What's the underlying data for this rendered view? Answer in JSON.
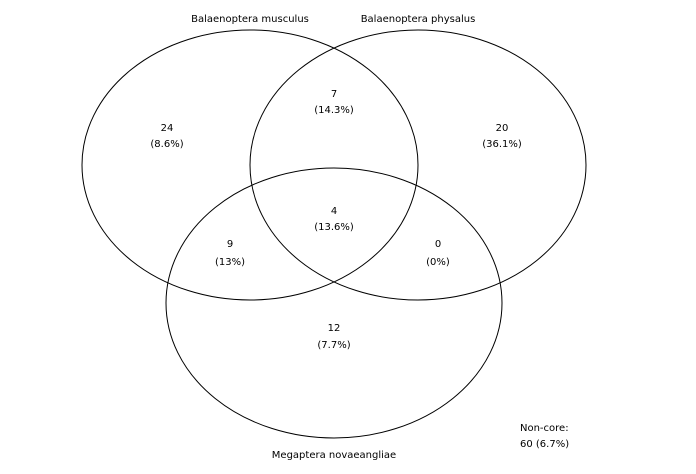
{
  "sets": {
    "a": "Balaenoptera musculus",
    "b": "Balaenoptera physalus",
    "c": "Megaptera novaeangliae"
  },
  "regions": {
    "a_only": {
      "count": "24",
      "percent": "(8.6%)"
    },
    "ab": {
      "count": "7",
      "percent": "(14.3%)"
    },
    "b_only": {
      "count": "20",
      "percent": "(36.1%)"
    },
    "abc": {
      "count": "4",
      "percent": "(13.6%)"
    },
    "ac": {
      "count": "9",
      "percent": "(13%)"
    },
    "bc": {
      "count": "0",
      "percent": "(0%)"
    },
    "c_only": {
      "count": "12",
      "percent": "(7.7%)"
    }
  },
  "noncore": {
    "label": "Non-core:",
    "value": "60 (6.7%)"
  }
}
